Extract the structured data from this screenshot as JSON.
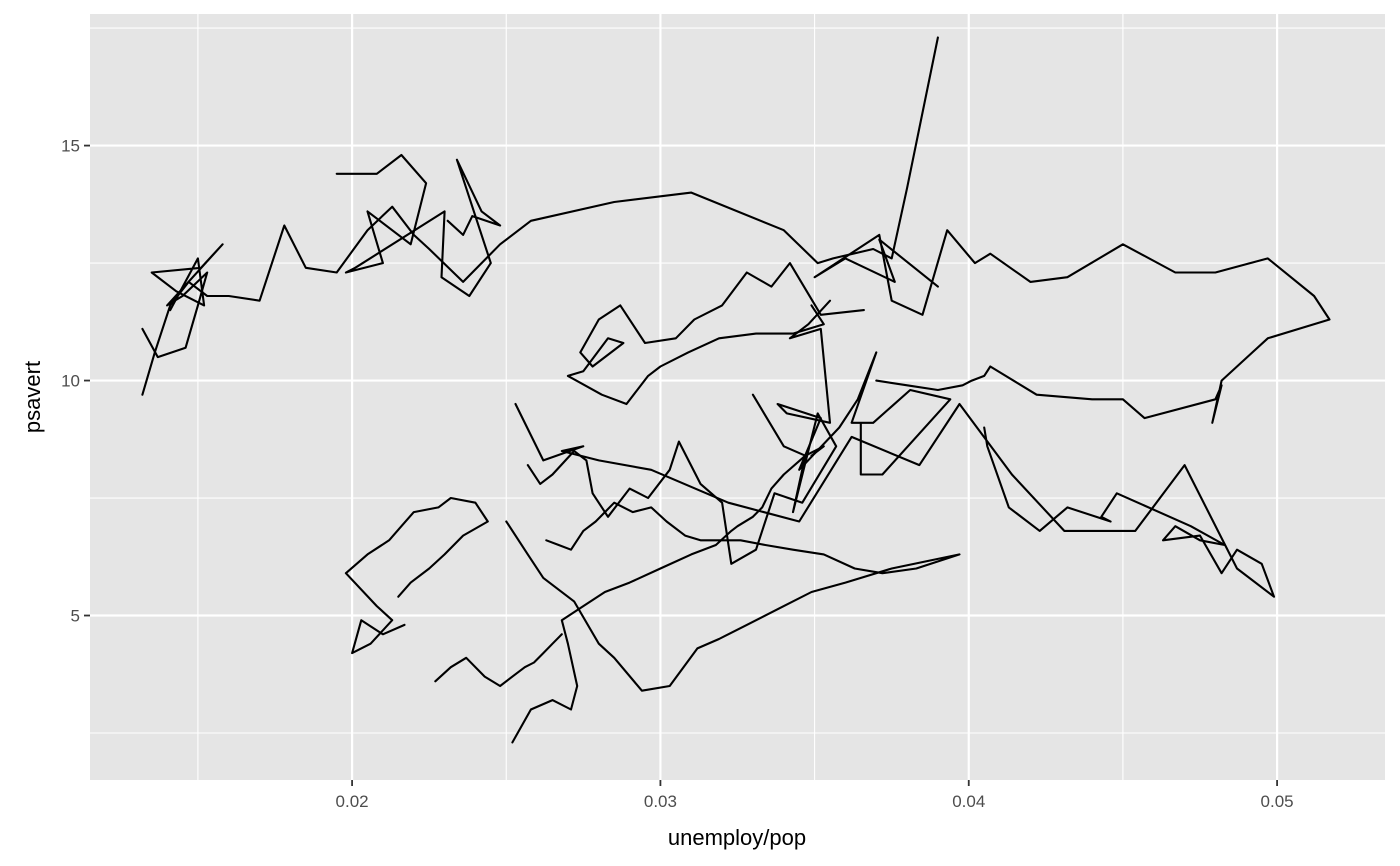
{
  "chart_data": {
    "type": "line",
    "title": "",
    "xlabel": "unemploy/pop",
    "ylabel": "psavert",
    "xlim": [
      0.0115,
      0.0535
    ],
    "ylim": [
      1.5,
      17.8
    ],
    "x_ticks": [
      0.02,
      0.03,
      0.04,
      0.05
    ],
    "x_tick_labels": [
      "0.02",
      "0.03",
      "0.04",
      "0.05"
    ],
    "y_ticks": [
      5,
      10,
      15
    ],
    "y_tick_labels": [
      "5",
      "10",
      "15"
    ],
    "grid": true,
    "legend": "none",
    "colors": {
      "panel": "#e5e5e5",
      "grid": "#ffffff",
      "line": "#000000",
      "tick": "#333333",
      "tick_label": "#4d4d4d"
    },
    "series": [
      {
        "x": [
          0.039,
          0.038,
          0.0375,
          0.0369,
          0.0356,
          0.0351,
          0.034,
          0.031,
          0.0285,
          0.0258,
          0.0248,
          0.0236,
          0.0225,
          0.022,
          0.0213,
          0.0205,
          0.0195,
          0.0185,
          0.0178,
          0.017,
          0.016,
          0.0153,
          0.0147,
          0.0141,
          0.0136,
          0.0132
        ],
        "y": [
          17.3,
          14.1,
          12.6,
          12.8,
          12.6,
          12.5,
          13.2,
          14.0,
          13.8,
          13.4,
          12.9,
          12.1,
          12.8,
          13.1,
          13.7,
          13.2,
          12.3,
          12.4,
          13.3,
          11.7,
          11.8,
          11.8,
          12.1,
          11.6,
          10.6,
          9.7
        ]
      },
      {
        "x": [
          0.0132,
          0.0137,
          0.0146,
          0.015,
          0.0153,
          0.0145,
          0.014,
          0.0158,
          0.0151,
          0.0135,
          0.0143,
          0.0152,
          0.015,
          0.0141
        ],
        "y": [
          11.1,
          10.5,
          10.7,
          11.6,
          12.3,
          11.8,
          11.6,
          12.9,
          12.4,
          12.3,
          11.9,
          11.6,
          12.6,
          11.5
        ]
      },
      {
        "x": [
          0.0195,
          0.0208,
          0.0216,
          0.0224,
          0.0219,
          0.0205,
          0.021,
          0.0198,
          0.0201,
          0.023,
          0.0229,
          0.0238,
          0.0245,
          0.0234,
          0.0242,
          0.0248,
          0.0239,
          0.0236,
          0.0231
        ],
        "y": [
          14.4,
          14.4,
          14.8,
          14.2,
          12.9,
          13.6,
          12.5,
          12.3,
          12.4,
          13.6,
          12.2,
          11.8,
          12.5,
          14.7,
          13.6,
          13.3,
          13.5,
          13.1,
          13.4
        ]
      },
      {
        "x": [
          0.039,
          0.0371,
          0.0376,
          0.036,
          0.035,
          0.0371,
          0.0375,
          0.0385,
          0.0393,
          0.0402,
          0.0407,
          0.042,
          0.0432,
          0.045,
          0.0467,
          0.048,
          0.0497,
          0.0512,
          0.0517,
          0.0497,
          0.0492,
          0.0487,
          0.0482,
          0.0479,
          0.0482,
          0.048,
          0.0457,
          0.045,
          0.044,
          0.0422,
          0.0407,
          0.0405,
          0.0401,
          0.0398,
          0.039,
          0.038,
          0.037
        ],
        "y": [
          12.0,
          13.0,
          12.1,
          12.6,
          12.2,
          13.1,
          11.7,
          11.4,
          13.2,
          12.5,
          12.7,
          12.1,
          12.2,
          12.9,
          12.3,
          12.3,
          12.6,
          11.8,
          11.3,
          10.9,
          10.6,
          10.3,
          10.0,
          9.1,
          9.9,
          9.6,
          9.2,
          9.6,
          9.6,
          9.7,
          10.3,
          10.1,
          10.0,
          9.9,
          9.8,
          9.9,
          10.0
        ]
      },
      {
        "x": [
          0.0253,
          0.0262,
          0.0275,
          0.0268,
          0.028,
          0.0297,
          0.0322,
          0.0345,
          0.0362,
          0.0384,
          0.0397,
          0.0414,
          0.0431,
          0.0454,
          0.047,
          0.0487,
          0.0499,
          0.0495,
          0.0487,
          0.0482,
          0.0475,
          0.0463,
          0.0467,
          0.0475,
          0.0483,
          0.0472,
          0.0448,
          0.0443,
          0.0446,
          0.0432,
          0.0423,
          0.0413,
          0.0406,
          0.0405
        ],
        "y": [
          9.5,
          8.3,
          8.6,
          8.5,
          8.3,
          8.1,
          7.4,
          7.0,
          8.8,
          8.2,
          9.5,
          8.0,
          6.8,
          6.8,
          8.2,
          6.0,
          5.4,
          6.1,
          6.4,
          5.9,
          6.7,
          6.6,
          6.9,
          6.6,
          6.5,
          6.9,
          7.6,
          7.1,
          7.0,
          7.3,
          6.8,
          7.3,
          8.6,
          9.0
        ]
      },
      {
        "x": [
          0.0366,
          0.0352,
          0.0342,
          0.0336,
          0.0328,
          0.032,
          0.0311,
          0.0305,
          0.0295,
          0.0287,
          0.028,
          0.0274,
          0.0278,
          0.0288,
          0.0283,
          0.0275,
          0.027,
          0.0281,
          0.0289,
          0.0296,
          0.03,
          0.0309,
          0.0319,
          0.0331,
          0.0343,
          0.0353,
          0.0349
        ],
        "y": [
          11.5,
          11.4,
          12.5,
          12.0,
          12.3,
          11.6,
          11.3,
          10.9,
          10.8,
          11.6,
          11.3,
          10.6,
          10.3,
          10.8,
          10.9,
          10.2,
          10.1,
          9.7,
          9.5,
          10.1,
          10.3,
          10.6,
          10.9,
          11.0,
          11.0,
          11.2,
          11.6
        ]
      },
      {
        "x": [
          0.0355,
          0.0348,
          0.0342,
          0.0352,
          0.0355,
          0.0341,
          0.0338,
          0.0352,
          0.0345,
          0.0358,
          0.0364,
          0.037,
          0.0362,
          0.0369,
          0.0381,
          0.0394,
          0.0372,
          0.0365,
          0.0365
        ],
        "y": [
          11.7,
          11.2,
          10.9,
          11.1,
          9.1,
          9.3,
          9.5,
          9.2,
          8.1,
          9.0,
          9.6,
          10.6,
          9.1,
          9.1,
          9.8,
          9.6,
          8.0,
          8.0,
          9.1
        ]
      },
      {
        "x": [
          0.033,
          0.034,
          0.0347,
          0.0343,
          0.0351,
          0.0357,
          0.0346,
          0.0337,
          0.0331,
          0.0323,
          0.032,
          0.0313,
          0.0306,
          0.0303,
          0.0296,
          0.029,
          0.0283,
          0.0278,
          0.0276,
          0.0272,
          0.0265,
          0.0261,
          0.0257
        ],
        "y": [
          9.7,
          8.6,
          8.4,
          7.2,
          9.3,
          8.6,
          7.4,
          7.6,
          6.4,
          6.1,
          7.4,
          7.8,
          8.7,
          8.1,
          7.5,
          7.7,
          7.1,
          7.6,
          8.3,
          8.5,
          8.0,
          7.8,
          8.2
        ]
      },
      {
        "x": [
          0.025,
          0.0257,
          0.0262,
          0.0272,
          0.028,
          0.0285,
          0.0294,
          0.0303,
          0.0312,
          0.0319,
          0.0328,
          0.034,
          0.0349,
          0.036,
          0.0375,
          0.0397,
          0.0383,
          0.0372,
          0.0363,
          0.0353,
          0.0343,
          0.0334,
          0.0326,
          0.0319,
          0.0313,
          0.0308,
          0.0302,
          0.0297,
          0.0291,
          0.0285,
          0.0279,
          0.0275,
          0.0271,
          0.0267,
          0.0263
        ],
        "y": [
          7.0,
          6.3,
          5.8,
          5.3,
          4.4,
          4.1,
          3.4,
          3.5,
          4.3,
          4.5,
          4.8,
          5.2,
          5.5,
          5.7,
          6.0,
          6.3,
          6.0,
          5.9,
          6.0,
          6.3,
          6.4,
          6.5,
          6.6,
          6.6,
          6.6,
          6.7,
          7.0,
          7.3,
          7.2,
          7.4,
          7.0,
          6.8,
          6.4,
          6.5,
          6.6
        ]
      },
      {
        "x": [
          0.0252,
          0.0258,
          0.0265,
          0.0271,
          0.0273,
          0.027,
          0.0268,
          0.0275,
          0.0282,
          0.029,
          0.03,
          0.031,
          0.0318,
          0.0323,
          0.0325,
          0.033,
          0.0333,
          0.0336,
          0.034,
          0.0347,
          0.0353,
          0.0349
        ],
        "y": [
          2.3,
          3.0,
          3.2,
          3.0,
          3.5,
          4.4,
          4.9,
          5.2,
          5.5,
          5.7,
          6.0,
          6.3,
          6.5,
          6.8,
          6.9,
          7.1,
          7.3,
          7.7,
          8.0,
          8.4,
          8.6,
          8.4
        ]
      },
      {
        "x": [
          0.0217,
          0.021,
          0.0203,
          0.02,
          0.0206,
          0.0213,
          0.0208,
          0.0198,
          0.0205,
          0.0212,
          0.0216,
          0.022,
          0.0228,
          0.0232,
          0.024,
          0.0244,
          0.0236,
          0.023,
          0.0225,
          0.0219,
          0.0215
        ],
        "y": [
          4.8,
          4.6,
          4.9,
          4.2,
          4.4,
          4.9,
          5.2,
          5.9,
          6.3,
          6.6,
          6.9,
          7.2,
          7.3,
          7.5,
          7.4,
          7.0,
          6.7,
          6.3,
          6.0,
          5.7,
          5.4
        ]
      },
      {
        "x": [
          0.0227,
          0.0232,
          0.0237,
          0.0243,
          0.0248,
          0.0252,
          0.0256,
          0.0259,
          0.0262,
          0.0265,
          0.0268
        ],
        "y": [
          3.6,
          3.9,
          4.1,
          3.7,
          3.5,
          3.7,
          3.9,
          4.0,
          4.2,
          4.4,
          4.6
        ]
      }
    ]
  }
}
